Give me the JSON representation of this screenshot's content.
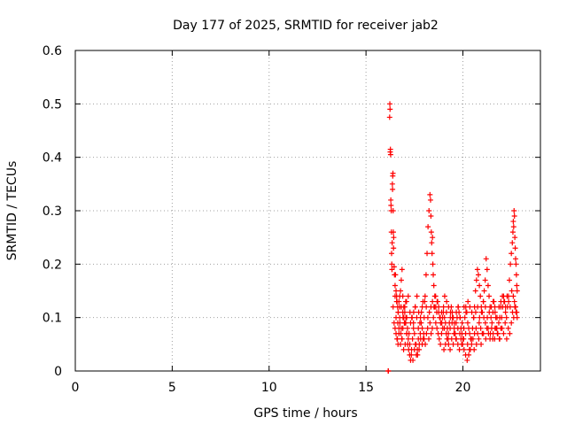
{
  "chart_data": {
    "type": "scatter",
    "title": "Day 177 of 2025, SRMTID for receiver jab2",
    "xlabel": "GPS time / hours",
    "ylabel": "SRMTID / TECUs",
    "xlim": [
      0,
      24
    ],
    "ylim": [
      0,
      0.6
    ],
    "xticks": [
      0,
      5,
      10,
      15,
      20
    ],
    "xtick_labels": [
      "0",
      "5",
      "10",
      "15",
      "20"
    ],
    "yticks": [
      0,
      0.1,
      0.2,
      0.3,
      0.4,
      0.5,
      0.6
    ],
    "ytick_labels": [
      "0",
      "0.1",
      "0.2",
      "0.3",
      "0.4",
      "0.5",
      "0.6"
    ],
    "grid": true,
    "marker": "plus",
    "color": "#ff0000",
    "series": [
      {
        "name": "jab2",
        "x": [
          16.15,
          16.15,
          16.15,
          16.22,
          16.23,
          16.24,
          16.25,
          16.26,
          16.27,
          16.28,
          16.29,
          16.3,
          16.31,
          16.32,
          16.33,
          16.34,
          16.35,
          16.36,
          16.37,
          16.38,
          16.39,
          16.4,
          16.41,
          16.42,
          16.43,
          16.45,
          16.47,
          16.5,
          16.52,
          16.55,
          16.58,
          16.6,
          16.63,
          16.66,
          16.7,
          16.74,
          16.78,
          16.82,
          16.86,
          16.9,
          16.95,
          17.0,
          17.05,
          17.1,
          16.4,
          16.45,
          16.5,
          16.55,
          16.6,
          16.65,
          16.7,
          16.75,
          16.8,
          16.85,
          16.9,
          16.95,
          17.0,
          17.05,
          17.1,
          17.15,
          17.2,
          17.25,
          17.3,
          17.35,
          17.4,
          17.45,
          17.5,
          17.55,
          17.6,
          17.65,
          17.7,
          17.75,
          17.8,
          17.85,
          17.9,
          17.95,
          16.5,
          16.58,
          16.66,
          16.74,
          16.82,
          16.9,
          16.98,
          17.06,
          17.14,
          17.22,
          17.3,
          17.38,
          17.46,
          17.54,
          17.62,
          17.7,
          17.78,
          17.86,
          17.94,
          16.62,
          16.7,
          16.78,
          16.86,
          16.94,
          17.02,
          17.1,
          17.18,
          17.26,
          17.34,
          17.42,
          17.5,
          17.58,
          17.66,
          17.74,
          17.82,
          17.9,
          17.98,
          16.55,
          16.64,
          16.73,
          16.82,
          16.91,
          17.0,
          17.09,
          17.18,
          17.27,
          17.36,
          17.45,
          17.54,
          17.63,
          17.72,
          17.81,
          17.9,
          18.0,
          18.05,
          18.1,
          18.15,
          18.2,
          18.25,
          18.3,
          18.33,
          18.35,
          18.37,
          18.39,
          18.41,
          18.43,
          18.45,
          18.47,
          18.5,
          18.55,
          18.6,
          18.65,
          18.7,
          18.75,
          18.8,
          18.85,
          18.9,
          18.95,
          18.0,
          18.06,
          18.12,
          18.18,
          18.24,
          18.3,
          18.36,
          18.42,
          18.48,
          18.54,
          18.6,
          18.66,
          18.72,
          18.78,
          18.84,
          18.9,
          18.96,
          18.03,
          18.11,
          18.19,
          18.27,
          18.35,
          18.43,
          18.51,
          18.59,
          18.67,
          18.75,
          18.83,
          18.91,
          18.99,
          19.0,
          19.05,
          19.1,
          19.15,
          19.2,
          19.25,
          19.3,
          19.35,
          19.4,
          19.45,
          19.5,
          19.55,
          19.6,
          19.65,
          19.7,
          19.75,
          19.8,
          19.85,
          19.9,
          19.95,
          20.0,
          20.05,
          20.1,
          20.15,
          20.2,
          20.25,
          20.3,
          20.35,
          20.4,
          20.45,
          19.02,
          19.1,
          19.18,
          19.26,
          19.34,
          19.42,
          19.5,
          19.58,
          19.66,
          19.74,
          19.82,
          19.9,
          19.98,
          20.06,
          20.14,
          20.22,
          20.3,
          20.38,
          19.06,
          19.16,
          19.26,
          19.36,
          19.46,
          19.56,
          19.66,
          19.76,
          19.86,
          19.96,
          20.06,
          20.16,
          20.26,
          20.36,
          20.46,
          19.04,
          19.14,
          19.24,
          19.34,
          19.44,
          19.54,
          19.64,
          19.74,
          19.84,
          19.94,
          20.04,
          20.14,
          20.24,
          20.34,
          20.44,
          20.5,
          20.55,
          20.6,
          20.65,
          20.7,
          20.75,
          20.8,
          20.85,
          20.9,
          20.95,
          21.0,
          21.05,
          21.1,
          21.15,
          21.2,
          21.25,
          21.3,
          21.35,
          21.4,
          21.45,
          21.5,
          21.55,
          21.6,
          21.65,
          21.7,
          21.75,
          21.8,
          21.85,
          21.9,
          21.95,
          20.52,
          20.6,
          20.68,
          20.76,
          20.84,
          20.92,
          21.0,
          21.08,
          21.16,
          21.24,
          21.32,
          21.4,
          21.48,
          21.56,
          21.64,
          21.72,
          21.8,
          21.88,
          21.96,
          20.56,
          20.66,
          20.76,
          20.86,
          20.96,
          21.06,
          21.16,
          21.26,
          21.36,
          21.46,
          21.56,
          21.66,
          21.76,
          21.86,
          21.96,
          20.58,
          20.7,
          20.82,
          20.94,
          21.06,
          21.18,
          21.3,
          21.42,
          21.54,
          21.66,
          21.78,
          21.9,
          22.0,
          22.05,
          22.1,
          22.15,
          22.2,
          22.25,
          22.3,
          22.35,
          22.4,
          22.45,
          22.5,
          22.55,
          22.58,
          22.6,
          22.62,
          22.64,
          22.66,
          22.68,
          22.7,
          22.72,
          22.74,
          22.76,
          22.78,
          22.8,
          22.02,
          22.1,
          22.18,
          22.26,
          22.34,
          22.42,
          22.5,
          22.56,
          22.62,
          22.68,
          22.74,
          22.8,
          22.04,
          22.12,
          22.2,
          22.28,
          22.36,
          22.44,
          22.52,
          22.6,
          22.66,
          22.72,
          22.78
        ],
        "y": [
          0.0,
          0.0,
          0.0,
          0.475,
          0.5,
          0.49,
          0.41,
          0.415,
          0.405,
          0.32,
          0.31,
          0.3,
          0.26,
          0.22,
          0.2,
          0.19,
          0.24,
          0.35,
          0.34,
          0.365,
          0.37,
          0.3,
          0.26,
          0.23,
          0.25,
          0.195,
          0.18,
          0.16,
          0.18,
          0.15,
          0.14,
          0.13,
          0.12,
          0.11,
          0.13,
          0.14,
          0.15,
          0.17,
          0.19,
          0.14,
          0.12,
          0.11,
          0.13,
          0.1,
          0.12,
          0.09,
          0.08,
          0.07,
          0.06,
          0.05,
          0.08,
          0.09,
          0.07,
          0.06,
          0.08,
          0.1,
          0.12,
          0.09,
          0.07,
          0.05,
          0.04,
          0.03,
          0.02,
          0.04,
          0.06,
          0.08,
          0.07,
          0.05,
          0.03,
          0.04,
          0.06,
          0.05,
          0.07,
          0.09,
          0.08,
          0.06,
          0.14,
          0.13,
          0.11,
          0.1,
          0.12,
          0.11,
          0.09,
          0.1,
          0.08,
          0.07,
          0.09,
          0.1,
          0.11,
          0.12,
          0.1,
          0.08,
          0.09,
          0.11,
          0.13,
          0.06,
          0.07,
          0.05,
          0.06,
          0.04,
          0.05,
          0.07,
          0.06,
          0.05,
          0.03,
          0.02,
          0.04,
          0.05,
          0.03,
          0.04,
          0.06,
          0.05,
          0.07,
          0.1,
          0.09,
          0.12,
          0.08,
          0.1,
          0.09,
          0.13,
          0.14,
          0.11,
          0.1,
          0.09,
          0.12,
          0.14,
          0.11,
          0.1,
          0.12,
          0.1,
          0.14,
          0.18,
          0.22,
          0.27,
          0.3,
          0.33,
          0.32,
          0.29,
          0.26,
          0.24,
          0.22,
          0.25,
          0.2,
          0.18,
          0.16,
          0.14,
          0.12,
          0.11,
          0.13,
          0.12,
          0.1,
          0.09,
          0.11,
          0.1,
          0.06,
          0.05,
          0.07,
          0.08,
          0.06,
          0.09,
          0.07,
          0.08,
          0.1,
          0.12,
          0.09,
          0.08,
          0.07,
          0.06,
          0.05,
          0.07,
          0.08,
          0.13,
          0.12,
          0.1,
          0.11,
          0.12,
          0.13,
          0.12,
          0.14,
          0.13,
          0.11,
          0.1,
          0.09,
          0.11,
          0.12,
          0.1,
          0.09,
          0.11,
          0.08,
          0.07,
          0.09,
          0.1,
          0.12,
          0.11,
          0.1,
          0.08,
          0.07,
          0.09,
          0.1,
          0.12,
          0.11,
          0.1,
          0.08,
          0.07,
          0.06,
          0.08,
          0.1,
          0.12,
          0.11,
          0.09,
          0.08,
          0.07,
          0.06,
          0.05,
          0.04,
          0.05,
          0.06,
          0.05,
          0.04,
          0.06,
          0.05,
          0.07,
          0.06,
          0.05,
          0.04,
          0.06,
          0.05,
          0.04,
          0.03,
          0.02,
          0.03,
          0.04,
          0.14,
          0.13,
          0.12,
          0.11,
          0.1,
          0.09,
          0.11,
          0.12,
          0.1,
          0.09,
          0.12,
          0.11,
          0.13,
          0.12,
          0.11,
          0.08,
          0.07,
          0.06,
          0.08,
          0.09,
          0.07,
          0.06,
          0.08,
          0.07,
          0.05,
          0.06,
          0.07,
          0.05,
          0.04,
          0.06,
          0.08,
          0.1,
          0.12,
          0.15,
          0.17,
          0.19,
          0.18,
          0.16,
          0.14,
          0.12,
          0.11,
          0.13,
          0.15,
          0.17,
          0.21,
          0.19,
          0.16,
          0.14,
          0.12,
          0.1,
          0.09,
          0.11,
          0.13,
          0.12,
          0.1,
          0.08,
          0.07,
          0.09,
          0.1,
          0.12,
          0.06,
          0.07,
          0.08,
          0.07,
          0.09,
          0.08,
          0.07,
          0.1,
          0.09,
          0.08,
          0.07,
          0.06,
          0.08,
          0.07,
          0.06,
          0.08,
          0.07,
          0.06,
          0.08,
          0.1,
          0.11,
          0.12,
          0.1,
          0.11,
          0.13,
          0.12,
          0.1,
          0.11,
          0.12,
          0.13,
          0.11,
          0.1,
          0.12,
          0.13,
          0.04,
          0.05,
          0.06,
          0.05,
          0.07,
          0.06,
          0.08,
          0.07,
          0.06,
          0.08,
          0.07,
          0.06,
          0.1,
          0.12,
          0.14,
          0.13,
          0.11,
          0.1,
          0.12,
          0.14,
          0.17,
          0.2,
          0.22,
          0.24,
          0.26,
          0.28,
          0.27,
          0.3,
          0.29,
          0.25,
          0.23,
          0.21,
          0.2,
          0.18,
          0.16,
          0.15,
          0.08,
          0.07,
          0.09,
          0.06,
          0.08,
          0.07,
          0.09,
          0.11,
          0.1,
          0.12,
          0.11,
          0.1,
          0.14,
          0.13,
          0.12,
          0.14,
          0.13,
          0.12,
          0.15,
          0.14,
          0.13,
          0.12,
          0.11
        ]
      }
    ]
  }
}
